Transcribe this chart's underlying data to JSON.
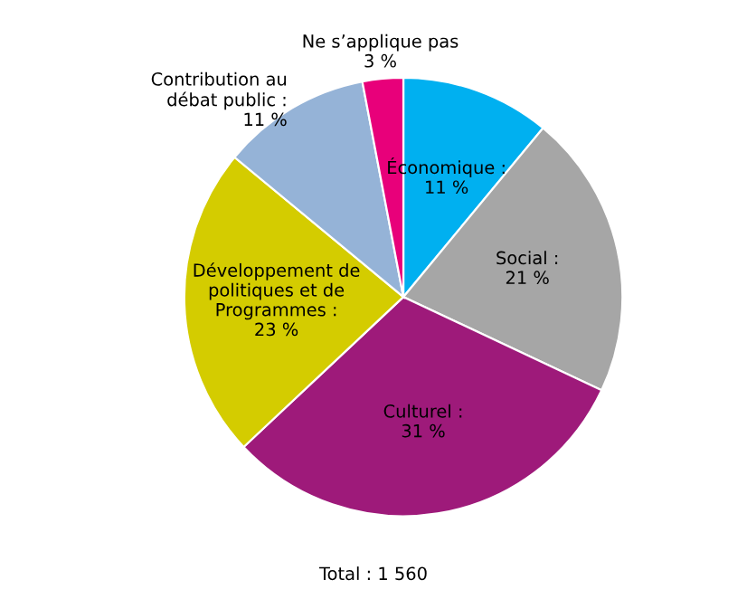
{
  "chart_data": {
    "type": "pie",
    "categories": [
      "Économique",
      "Social",
      "Culturel",
      "Développement de\npolitiques et de\nProgrammes",
      "Contribution au\ndébat public",
      "Ne s’applique pas"
    ],
    "values": [
      11,
      21,
      31,
      23,
      11,
      3
    ],
    "value_labels": [
      ":\n11 %",
      ":\n21 %",
      ":\n31 %",
      ":\n23 %",
      ":\n11 %",
      "3 %"
    ],
    "colors": [
      "#00b0f0",
      "#a6a6a6",
      "#9e1a7a",
      "#d4cc00",
      "#95b3d7",
      "#e8007a"
    ],
    "annotations": [
      "Total : 1 560"
    ],
    "legend": false
  }
}
